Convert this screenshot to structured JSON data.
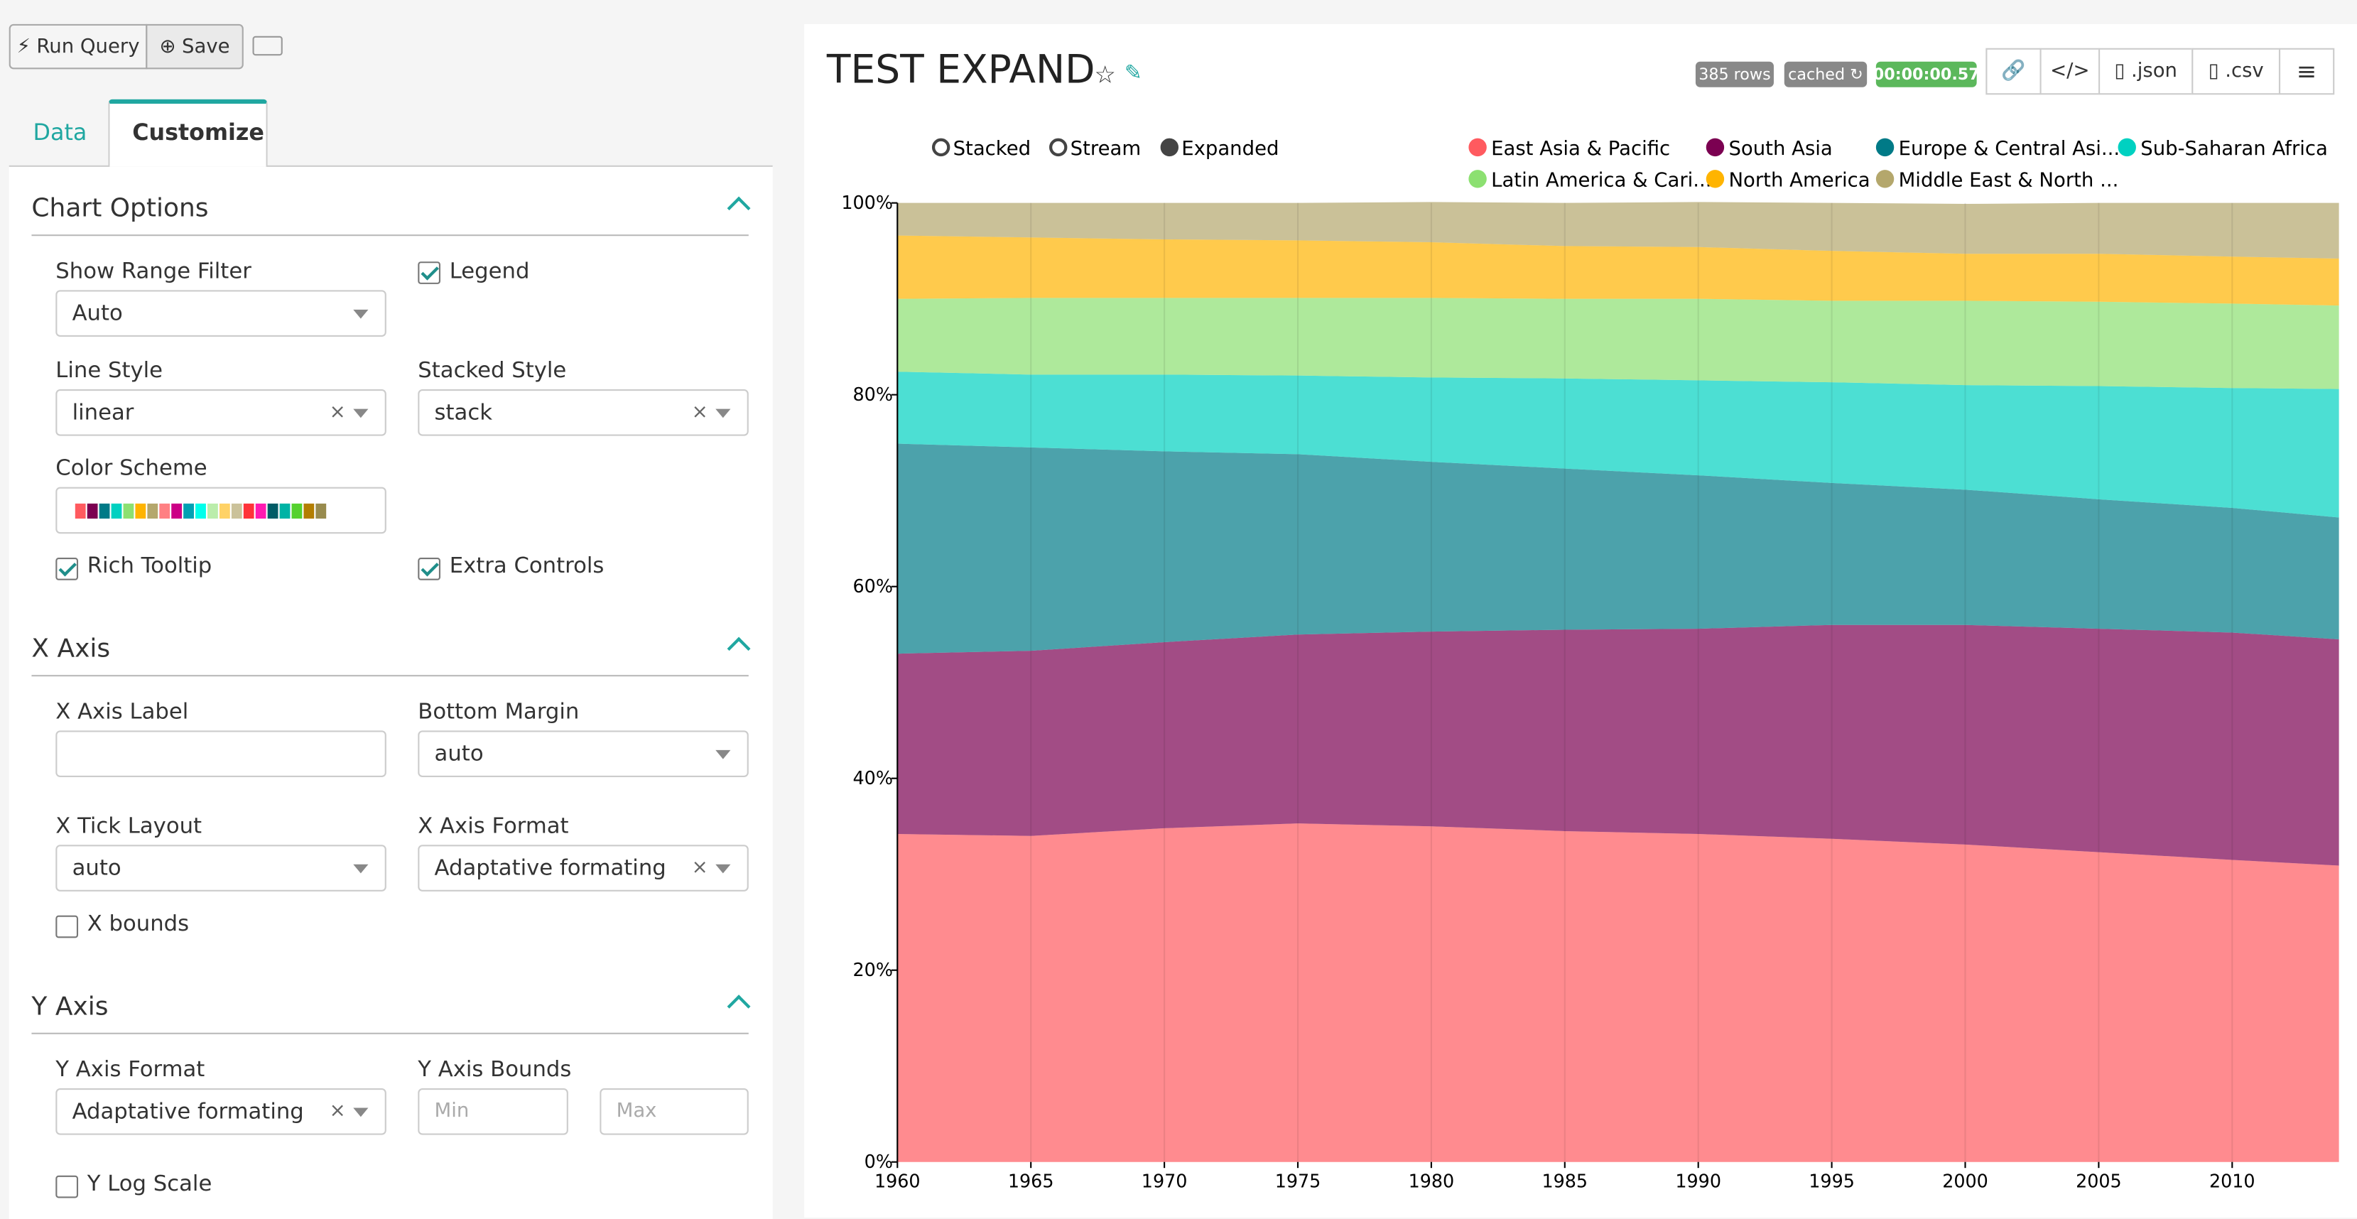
{
  "ui": {
    "toolbar": {
      "run_query": "Run Query",
      "save": "Save"
    },
    "tabs": [
      "Data",
      "Customize"
    ],
    "sections": [
      {
        "title": "Chart Options",
        "fields": [
          {
            "label": "Show Range Filter",
            "value": "Auto"
          },
          {
            "label": "Legend",
            "checked": true
          },
          {
            "label": "Line Style",
            "value": "linear"
          },
          {
            "label": "Stacked Style",
            "value": "stack"
          },
          {
            "label": "Color Scheme"
          },
          {
            "label": "Rich Tooltip",
            "checked": true
          },
          {
            "label": "Extra Controls",
            "checked": true
          }
        ]
      },
      {
        "title": "X Axis",
        "fields": [
          {
            "label": "X Axis Label"
          },
          {
            "label": "Bottom Margin",
            "value": "auto"
          },
          {
            "label": "X Tick Layout",
            "value": "auto"
          },
          {
            "label": "X Axis Format",
            "value": "Adaptative formating"
          },
          {
            "label": "X bounds",
            "checked": false
          }
        ]
      },
      {
        "title": "Y Axis",
        "fields": [
          {
            "label": "Y Axis Format",
            "value": "Adaptative formating"
          },
          {
            "label": "Y Axis Bounds",
            "placeholders": [
              "Min",
              "Max"
            ]
          },
          {
            "label": "Y Log Scale",
            "checked": false
          }
        ]
      }
    ],
    "header": {
      "rows": "385 rows",
      "cached": "cached",
      "duration": "00:00:00.57",
      "json": ".json",
      "csv": ".csv"
    },
    "chart_controls": [
      "Stacked",
      "Stream",
      "Expanded"
    ]
  },
  "chart_data": {
    "type": "area",
    "title": "TEST EXPAND",
    "x": [
      1960,
      1965,
      1970,
      1975,
      1980,
      1985,
      1990,
      1995,
      2000,
      2005,
      2010,
      2014
    ],
    "series": [
      {
        "name": "East Asia & Pacific",
        "color": "#ff5a5f",
        "values": [
          34.2,
          34.0,
          34.8,
          35.3,
          35.0,
          34.5,
          34.2,
          33.7,
          33.1,
          32.3,
          31.5,
          30.9
        ]
      },
      {
        "name": "South Asia",
        "color": "#7b0051",
        "values": [
          18.8,
          19.3,
          19.4,
          19.7,
          20.3,
          21.0,
          21.4,
          22.3,
          22.9,
          23.3,
          23.7,
          23.6
        ]
      },
      {
        "name": "Europe & Central Asi...",
        "color": "#007a87",
        "values": [
          21.9,
          21.2,
          19.9,
          18.8,
          17.7,
          16.8,
          16.0,
          14.8,
          14.1,
          13.5,
          13.0,
          12.7
        ]
      },
      {
        "name": "Sub-Saharan Africa",
        "color": "#00d1c1",
        "values": [
          7.5,
          7.6,
          8.0,
          8.2,
          8.8,
          9.4,
          9.9,
          10.5,
          10.9,
          11.8,
          12.5,
          13.4
        ]
      },
      {
        "name": "Latin America & Cari...",
        "color": "#8ce071",
        "values": [
          7.6,
          8.0,
          8.0,
          8.1,
          8.3,
          8.3,
          8.5,
          8.5,
          8.8,
          8.8,
          8.8,
          8.7
        ]
      },
      {
        "name": "North America",
        "color": "#ffb400",
        "values": [
          6.6,
          6.3,
          6.1,
          6.0,
          5.8,
          5.5,
          5.4,
          5.2,
          4.9,
          5.0,
          4.9,
          4.9
        ]
      },
      {
        "name": "Middle East & North ...",
        "color": "#b4a76c",
        "values": [
          3.4,
          3.6,
          3.8,
          3.9,
          4.2,
          4.5,
          4.7,
          5.0,
          5.2,
          5.3,
          5.6,
          5.8
        ]
      }
    ],
    "xlim": [
      1960,
      2014
    ],
    "xticks": [
      1960,
      1965,
      1970,
      1975,
      1980,
      1985,
      1990,
      1995,
      2000,
      2005,
      2010
    ],
    "ylim": [
      0,
      100
    ],
    "yticks": [
      {
        "value": 0,
        "label": "0%"
      },
      {
        "value": 20,
        "label": "20%"
      },
      {
        "value": 40,
        "label": "40%"
      },
      {
        "value": 60,
        "label": "60%"
      },
      {
        "value": 80,
        "label": "80%"
      },
      {
        "value": 100,
        "label": "100%"
      }
    ],
    "grid": "x",
    "fill_opacity": 0.7
  }
}
